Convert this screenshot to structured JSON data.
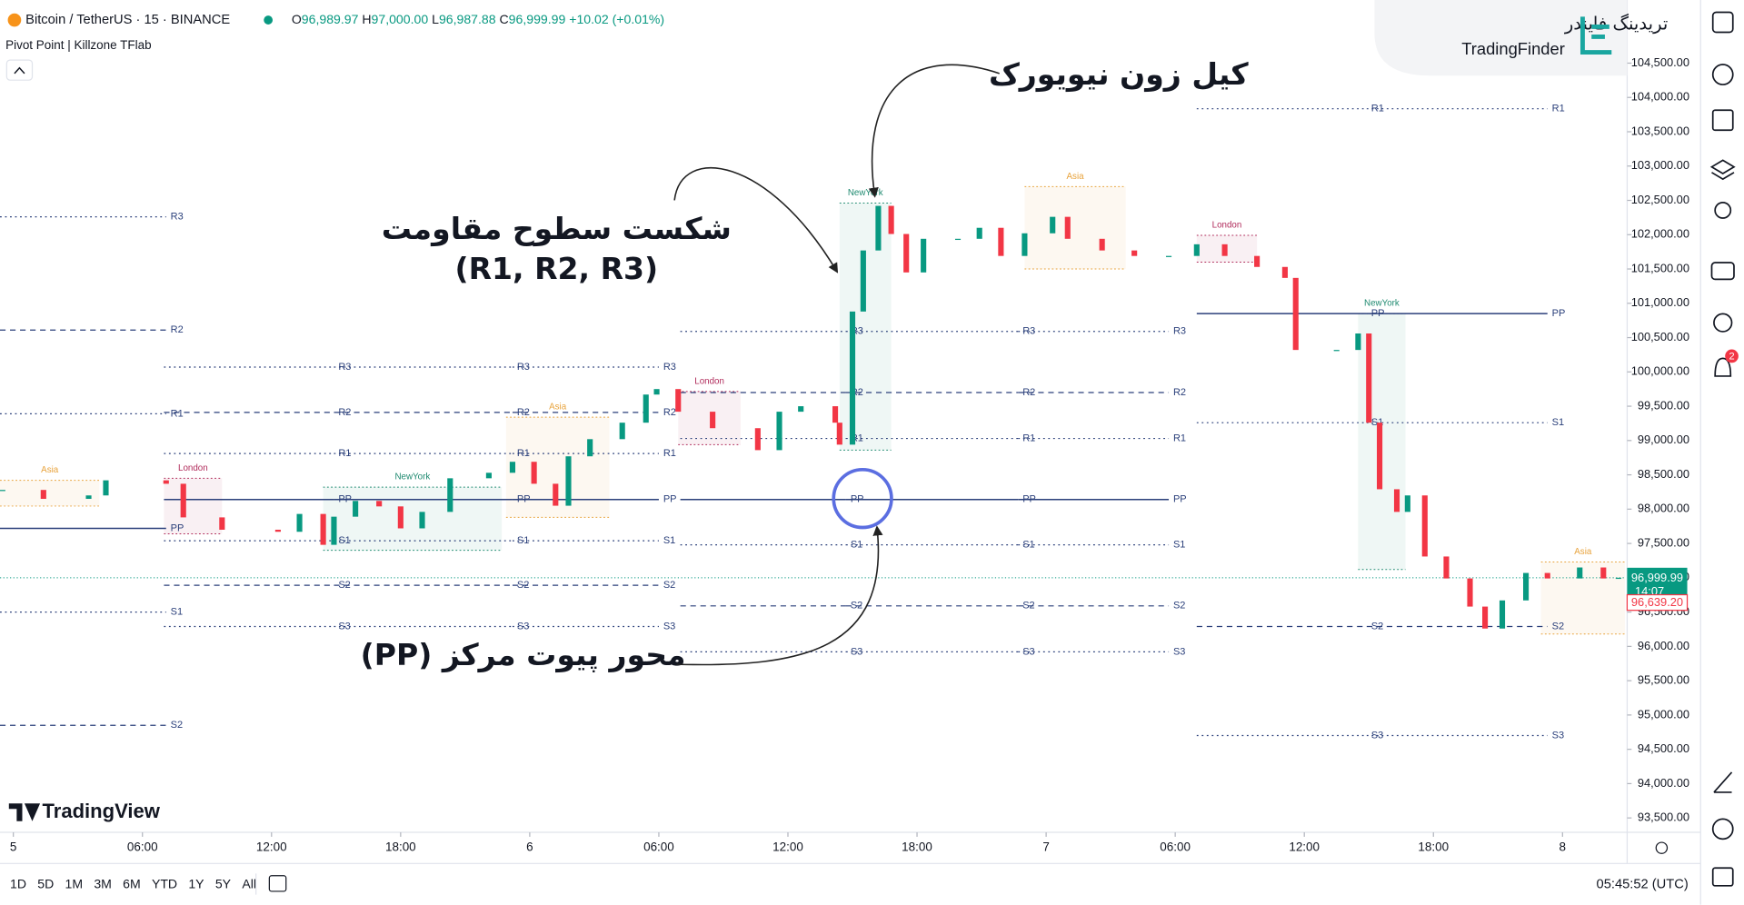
{
  "header": {
    "symbol": "Bitcoin / TetherUS · 15 · BINANCE",
    "ohlc": [
      "O",
      "96,989.97",
      "H",
      "97,000.00",
      "L",
      "96,987.88",
      "C",
      "96,999.99",
      "+10.02 (+0.01%)"
    ],
    "indicator": "Pivot Point | Killzone TFlab"
  },
  "logo": {
    "fa": "تریدینگ فایندر",
    "en": "TradingFinder"
  },
  "watermark": "TradingView",
  "annotations": {
    "killzone": "کیل زون نیویورک",
    "breakout": "شکست سطوح مقاومت",
    "breakout_levels": "(R1, R2, R3)",
    "pivot": "محور پیوت مرکز (PP)"
  },
  "toolbar": {
    "badge": "2"
  },
  "bottom_bar": {
    "ranges": [
      "1D",
      "5D",
      "1M",
      "3M",
      "6M",
      "YTD",
      "1Y",
      "5Y",
      "All"
    ],
    "clock": "05:45:52 (UTC)"
  },
  "chart_data": {
    "type": "candlestick",
    "colors": {
      "up": "#089981",
      "down": "#f23645"
    },
    "grid": false,
    "x": [
      -0.5,
      1.4,
      3.5,
      4.3,
      7.1,
      7.9,
      9.7,
      12.3,
      13.3,
      14.4,
      14.9,
      15.9,
      17.0,
      18.0,
      19.0,
      20.3,
      22.1,
      23.2,
      24.2,
      25.2,
      25.8,
      26.8,
      28.3,
      29.4,
      29.9,
      30.9,
      32.5,
      34.6,
      35.6,
      36.6,
      38.2,
      38.4,
      39.0,
      39.5,
      40.2,
      40.8,
      41.5,
      42.3,
      43.9,
      44.9,
      45.9,
      47.0,
      48.3,
      49.0,
      50.6,
      52.1,
      53.7,
      55.0,
      56.3,
      57.8,
      59.1,
      59.6,
      61.5,
      62.5,
      63.0,
      63.5,
      64.3,
      64.8,
      65.6,
      66.6,
      67.7,
      68.4,
      69.2,
      70.3,
      71.3,
      72.8,
      73.9,
      74.6
    ],
    "values": [
      98280,
      98150,
      98200,
      98420,
      98370,
      97880,
      97700,
      97670,
      97930,
      97480,
      97890,
      98120,
      98040,
      97720,
      97960,
      98450,
      98530,
      98690,
      98370,
      98050,
      98770,
      99020,
      99260,
      99670,
      99750,
      99420,
      99180,
      98860,
      99420,
      99500,
      99260,
      98940,
      100880,
      101770,
      102420,
      102010,
      101450,
      101940,
      101940,
      102100,
      101690,
      102020,
      102260,
      101940,
      101770,
      101690,
      101690,
      101860,
      101690,
      101530,
      101370,
      100320,
      100320,
      100560,
      99260,
      98290,
      97960,
      98200,
      97310,
      96990,
      96580,
      96260,
      96670,
      97070,
      96990,
      97150,
      96990,
      96999.99
    ],
    "xlim": [
      -0.62,
      74.9
    ],
    "xticks": [
      {
        "value": 0,
        "label": "5"
      },
      {
        "value": 6,
        "label": "06:00"
      },
      {
        "value": 12,
        "label": "12:00"
      },
      {
        "value": 18,
        "label": "18:00"
      },
      {
        "value": 24,
        "label": "6"
      },
      {
        "value": 30,
        "label": "06:00"
      },
      {
        "value": 36,
        "label": "12:00"
      },
      {
        "value": 42,
        "label": "18:00"
      },
      {
        "value": 48,
        "label": "7"
      },
      {
        "value": 54,
        "label": "06:00"
      },
      {
        "value": 60,
        "label": "12:00"
      },
      {
        "value": 66,
        "label": "18:00"
      },
      {
        "value": 72,
        "label": "8"
      }
    ],
    "ylim": [
      93290,
      105420
    ],
    "yticks": [
      {
        "value": 93500,
        "label": "93,500.00"
      },
      {
        "value": 94000,
        "label": "94,000.00"
      },
      {
        "value": 94500,
        "label": "94,500.00"
      },
      {
        "value": 95000,
        "label": "95,000.00"
      },
      {
        "value": 95500,
        "label": "95,500.00"
      },
      {
        "value": 96000,
        "label": "96,000.00"
      },
      {
        "value": 96500,
        "label": "96,500.00"
      },
      {
        "value": 97000,
        "label": "97,000.00"
      },
      {
        "value": 97500,
        "label": "97,500.00"
      },
      {
        "value": 98000,
        "label": "98,000.00"
      },
      {
        "value": 98500,
        "label": "98,500.00"
      },
      {
        "value": 99000,
        "label": "99,000.00"
      },
      {
        "value": 99500,
        "label": "99,500.00"
      },
      {
        "value": 100000,
        "label": "100,000.00"
      },
      {
        "value": 100500,
        "label": "100,500.00"
      },
      {
        "value": 101000,
        "label": "101,000.00"
      },
      {
        "value": 101500,
        "label": "101,500.00"
      },
      {
        "value": 102000,
        "label": "102,000.00"
      },
      {
        "value": 102500,
        "label": "102,500.00"
      },
      {
        "value": 103000,
        "label": "103,000.00"
      },
      {
        "value": 103500,
        "label": "103,500.00"
      },
      {
        "value": 104000,
        "label": "104,000.00"
      },
      {
        "value": 104500,
        "label": "104,500.00"
      }
    ],
    "price_labels": [
      {
        "value": 96999.99,
        "label": "96,999.99",
        "color": "#089981"
      },
      {
        "value": 96639.2,
        "label": "96,639.20",
        "color": "#f23645"
      }
    ],
    "countdown": "14:07",
    "pivot_color": "#2a3f7a",
    "pivots": [
      {
        "x": [
          -0.62,
          7.1
        ],
        "levels": [
          {
            "label": "R3",
            "value": 102260,
            "style": "dotted"
          },
          {
            "label": "R2",
            "value": 100610,
            "style": "dashed"
          },
          {
            "label": "R1",
            "value": 99390,
            "style": "dotted"
          },
          {
            "label": "PP",
            "value": 97720,
            "style": "solid"
          },
          {
            "label": "S1",
            "value": 96500,
            "style": "dotted"
          },
          {
            "label": "S2",
            "value": 94850,
            "style": "dashed"
          }
        ]
      },
      {
        "x": [
          7.0,
          14.9
        ],
        "levels": [
          {
            "label": "R3",
            "value": 100070,
            "style": "dotted"
          },
          {
            "label": "R2",
            "value": 99410,
            "style": "dashed"
          },
          {
            "label": "R1",
            "value": 98810,
            "style": "dotted"
          },
          {
            "label": "PP",
            "value": 98140,
            "style": "solid"
          },
          {
            "label": "S1",
            "value": 97540,
            "style": "dotted"
          },
          {
            "label": "S2",
            "value": 96890,
            "style": "dashed"
          },
          {
            "label": "S3",
            "value": 96290,
            "style": "dotted"
          }
        ]
      },
      {
        "x": [
          14.9,
          23.2
        ],
        "levels": [
          {
            "label": "R3",
            "value": 100070,
            "style": "dotted"
          },
          {
            "label": "R2",
            "value": 99410,
            "style": "dashed"
          },
          {
            "label": "R1",
            "value": 98810,
            "style": "dotted"
          },
          {
            "label": "PP",
            "value": 98140,
            "style": "solid"
          },
          {
            "label": "S1",
            "value": 97540,
            "style": "dotted"
          },
          {
            "label": "S2",
            "value": 96890,
            "style": "dashed"
          },
          {
            "label": "S3",
            "value": 96290,
            "style": "dotted"
          }
        ]
      },
      {
        "x": [
          23.2,
          30.0
        ],
        "levels": [
          {
            "label": "R3",
            "value": 100070,
            "style": "dotted"
          },
          {
            "label": "R2",
            "value": 99410,
            "style": "dashed"
          },
          {
            "label": "R1",
            "value": 98810,
            "style": "dotted"
          },
          {
            "label": "PP",
            "value": 98140,
            "style": "solid"
          },
          {
            "label": "S1",
            "value": 97540,
            "style": "dotted"
          },
          {
            "label": "S2",
            "value": 96890,
            "style": "dashed"
          },
          {
            "label": "S3",
            "value": 96290,
            "style": "dotted"
          }
        ]
      },
      {
        "x": [
          31.0,
          38.7
        ],
        "levels": [
          {
            "label": "R3",
            "value": 100590,
            "style": "dotted"
          },
          {
            "label": "R2",
            "value": 99700,
            "style": "dashed"
          },
          {
            "label": "R1",
            "value": 99030,
            "style": "dotted"
          },
          {
            "label": "PP",
            "value": 98140,
            "style": "solid"
          },
          {
            "label": "S1",
            "value": 97480,
            "style": "dotted"
          },
          {
            "label": "S2",
            "value": 96590,
            "style": "dashed"
          },
          {
            "label": "S3",
            "value": 95920,
            "style": "dotted"
          }
        ]
      },
      {
        "x": [
          38.7,
          46.7
        ],
        "levels": [
          {
            "label": "R3",
            "value": 100590,
            "style": "dotted"
          },
          {
            "label": "R2",
            "value": 99700,
            "style": "dashed"
          },
          {
            "label": "R1",
            "value": 99030,
            "style": "dotted"
          },
          {
            "label": "PP",
            "value": 98140,
            "style": "solid"
          },
          {
            "label": "S1",
            "value": 97480,
            "style": "dotted"
          },
          {
            "label": "S2",
            "value": 96590,
            "style": "dashed"
          },
          {
            "label": "S3",
            "value": 95920,
            "style": "dotted"
          }
        ]
      },
      {
        "x": [
          46.7,
          53.7
        ],
        "levels": [
          {
            "label": "R3",
            "value": 100590,
            "style": "dotted"
          },
          {
            "label": "R2",
            "value": 99700,
            "style": "dashed"
          },
          {
            "label": "R1",
            "value": 99030,
            "style": "dotted"
          },
          {
            "label": "PP",
            "value": 98140,
            "style": "solid"
          },
          {
            "label": "S1",
            "value": 97480,
            "style": "dotted"
          },
          {
            "label": "S2",
            "value": 96590,
            "style": "dashed"
          },
          {
            "label": "S3",
            "value": 95920,
            "style": "dotted"
          }
        ]
      },
      {
        "x": [
          55.0,
          62.9
        ],
        "levels": [
          {
            "label": "R1",
            "value": 103835,
            "style": "dotted"
          },
          {
            "label": "PP",
            "value": 100850,
            "style": "solid"
          },
          {
            "label": "S1",
            "value": 99260,
            "style": "dotted"
          },
          {
            "label": "S2",
            "value": 96290,
            "style": "dashed"
          },
          {
            "label": "S3",
            "value": 94700,
            "style": "dotted"
          }
        ]
      },
      {
        "x": [
          62.9,
          71.3
        ],
        "levels": [
          {
            "label": "R1",
            "value": 103835,
            "style": "dotted"
          },
          {
            "label": "PP",
            "value": 100850,
            "style": "solid"
          },
          {
            "label": "S1",
            "value": 99260,
            "style": "dotted"
          },
          {
            "label": "S2",
            "value": 96290,
            "style": "dashed"
          },
          {
            "label": "S3",
            "value": 94700,
            "style": "dotted"
          }
        ]
      }
    ],
    "sessions": [
      {
        "name": "Asia",
        "x": [
          -0.62,
          4.0
        ],
        "range": [
          98045,
          98420
        ],
        "color": "#e8a23a"
      },
      {
        "name": "London",
        "x": [
          7.0,
          9.7
        ],
        "range": [
          97640,
          98450
        ],
        "color": "#b02a5a"
      },
      {
        "name": "NewYork",
        "x": [
          14.4,
          22.7
        ],
        "range": [
          97400,
          98320
        ],
        "color": "#1f8a70"
      },
      {
        "name": "Asia",
        "x": [
          22.9,
          27.7
        ],
        "range": [
          97880,
          99340
        ],
        "color": "#e8a23a"
      },
      {
        "name": "London",
        "x": [
          30.9,
          33.8
        ],
        "range": [
          98940,
          99715
        ],
        "color": "#b02a5a"
      },
      {
        "name": "NewYork",
        "x": [
          38.4,
          40.8
        ],
        "range": [
          98860,
          102460
        ],
        "color": "#1f8a70"
      },
      {
        "name": "Asia",
        "x": [
          47.0,
          51.7
        ],
        "range": [
          101500,
          102700
        ],
        "color": "#e8a23a"
      },
      {
        "name": "London",
        "x": [
          55.0,
          57.8
        ],
        "range": [
          101600,
          101990
        ],
        "color": "#b02a5a"
      },
      {
        "name": "NewYork",
        "x": [
          62.5,
          64.7
        ],
        "range": [
          97120,
          100850
        ],
        "color": "#1f8a70"
      },
      {
        "name": "Asia",
        "x": [
          71.0,
          74.9
        ],
        "range": [
          96180,
          97230
        ],
        "color": "#e8a23a"
      }
    ]
  }
}
